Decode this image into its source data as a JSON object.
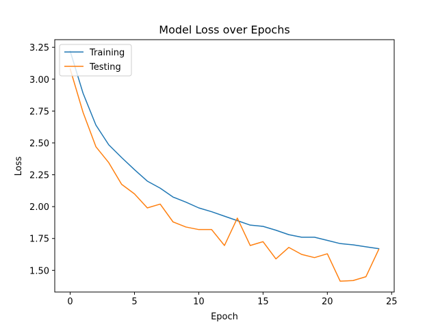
{
  "chart_data": {
    "type": "line",
    "title": "Model Loss over Epochs",
    "xlabel": "Epoch",
    "ylabel": "Loss",
    "xlim": [
      -1.2,
      25.2
    ],
    "ylim": [
      1.33,
      3.31
    ],
    "xticks": [
      0,
      5,
      10,
      15,
      20,
      25
    ],
    "yticks": [
      1.5,
      1.75,
      2.0,
      2.25,
      2.5,
      2.75,
      3.0,
      3.25
    ],
    "ytick_labels": [
      "1.50",
      "1.75",
      "2.00",
      "2.25",
      "2.50",
      "2.75",
      "3.00",
      "3.25"
    ],
    "grid": false,
    "legend_position": "top-left",
    "x": [
      0,
      1,
      2,
      3,
      4,
      5,
      6,
      7,
      8,
      9,
      10,
      11,
      12,
      13,
      14,
      15,
      16,
      17,
      18,
      19,
      20,
      21,
      22,
      23,
      24
    ],
    "series": [
      {
        "name": "Training",
        "color": "#1f77b4",
        "values": [
          3.22,
          2.89,
          2.64,
          2.485,
          2.385,
          2.29,
          2.2,
          2.145,
          2.075,
          2.035,
          1.99,
          1.96,
          1.925,
          1.89,
          1.855,
          1.845,
          1.815,
          1.78,
          1.76,
          1.76,
          1.735,
          1.71,
          1.7,
          1.685,
          1.67
        ]
      },
      {
        "name": "Testing",
        "color": "#ff7f0e",
        "values": [
          3.08,
          2.74,
          2.47,
          2.345,
          2.175,
          2.1,
          1.99,
          2.02,
          1.88,
          1.84,
          1.82,
          1.82,
          1.695,
          1.91,
          1.695,
          1.725,
          1.59,
          1.68,
          1.625,
          1.6,
          1.63,
          1.415,
          1.42,
          1.45,
          1.665
        ]
      }
    ]
  }
}
